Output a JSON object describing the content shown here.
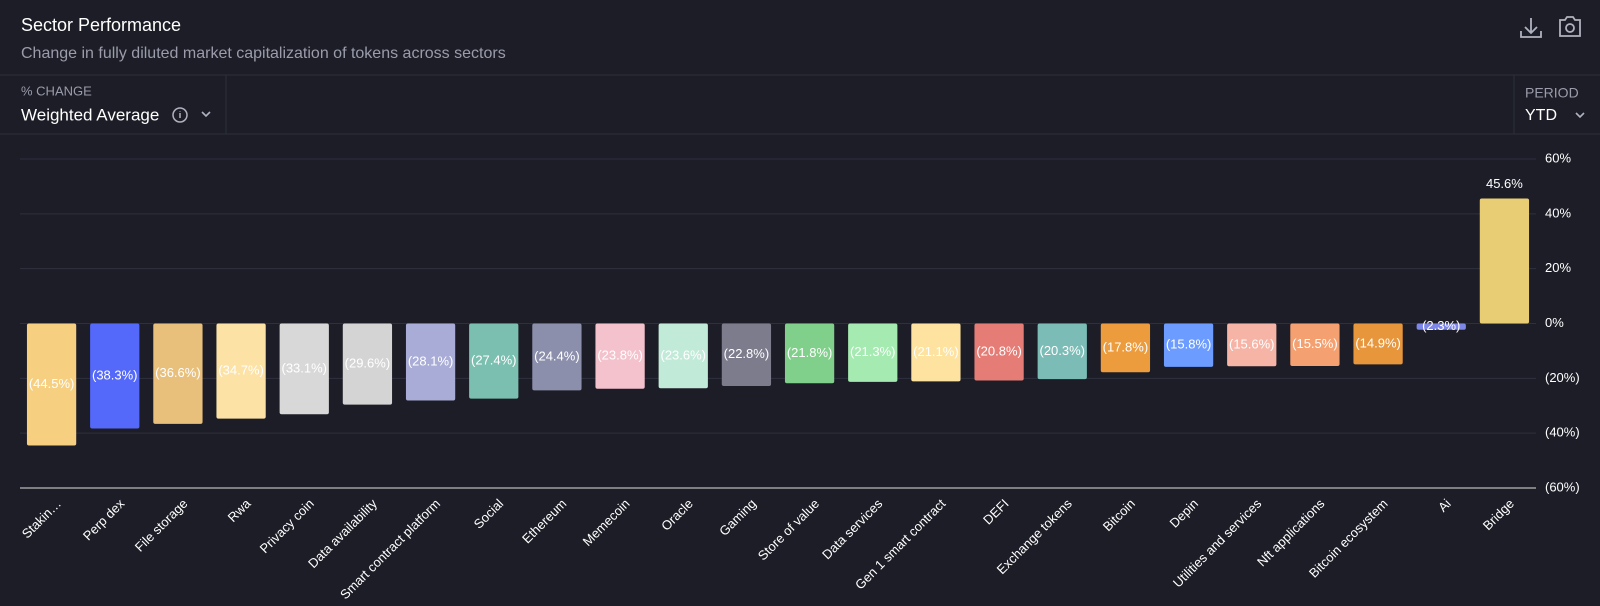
{
  "header": {
    "title": "Sector Performance",
    "subtitle": "Change in fully diluted market capitalization of tokens across sectors"
  },
  "controls": {
    "metric_label": "% CHANGE",
    "metric": "Weighted Average",
    "period_label": "PERIOD",
    "period": "YTD"
  },
  "chart_data": {
    "type": "bar",
    "categories": [
      "Stakin…",
      "Perp dex",
      "File storage",
      "Rwa",
      "Privacy coin",
      "Data availability",
      "Smart contract platform",
      "Social",
      "Ethereum",
      "Memecoin",
      "Oracle",
      "Gaming",
      "Store of value",
      "Data services",
      "Gen 1 smart contract",
      "DEFI",
      "Exchange tokens",
      "Bitcoin",
      "Depin",
      "Utilities and services",
      "Nft applications",
      "Bitcoin ecosystem",
      "Ai",
      "Bridge"
    ],
    "values": [
      -44.5,
      -38.3,
      -36.6,
      -34.7,
      -33.1,
      -29.6,
      -28.1,
      -27.4,
      -24.4,
      -23.8,
      -23.6,
      -22.8,
      -21.8,
      -21.3,
      -21.1,
      -20.8,
      -20.3,
      -17.8,
      -15.8,
      -15.6,
      -15.5,
      -14.9,
      -2.3,
      45.6
    ],
    "value_labels": [
      "(44.5%)",
      "(38.3%)",
      "(36.6%)",
      "(34.7%)",
      "(33.1%)",
      "(29.6%)",
      "(28.1%)",
      "(27.4%)",
      "(24.4%)",
      "(23.8%)",
      "(23.6%)",
      "(22.8%)",
      "(21.8%)",
      "(21.3%)",
      "(21.1%)",
      "(20.8%)",
      "(20.3%)",
      "(17.8%)",
      "(15.8%)",
      "(15.6%)",
      "(15.5%)",
      "(14.9%)",
      "(2.3%)",
      "45.6%"
    ],
    "colors": [
      "#f7cf80",
      "#5468fa",
      "#e8c07c",
      "#fde2a6",
      "#d8d8d8",
      "#d4d4d4",
      "#a9acd6",
      "#7bbfb0",
      "#8b8fac",
      "#f4c2cc",
      "#c2ead9",
      "#7c7c8c",
      "#80cf8a",
      "#a5eab0",
      "#fde2a0",
      "#e57c76",
      "#7bbcb6",
      "#ec9c3c",
      "#6c9cff",
      "#f6b4a6",
      "#f4a070",
      "#e8963c",
      "#7d87e8",
      "#e8cd74"
    ],
    "ylim": [
      -60,
      60
    ],
    "yticks": [
      {
        "value": 60,
        "label": "60%"
      },
      {
        "value": 40,
        "label": "40%"
      },
      {
        "value": 20,
        "label": "20%"
      },
      {
        "value": 0,
        "label": "0%"
      },
      {
        "value": -20,
        "label": "(20%)"
      },
      {
        "value": -40,
        "label": "(40%)"
      },
      {
        "value": -60,
        "label": "(60%)"
      }
    ],
    "grid": true
  }
}
